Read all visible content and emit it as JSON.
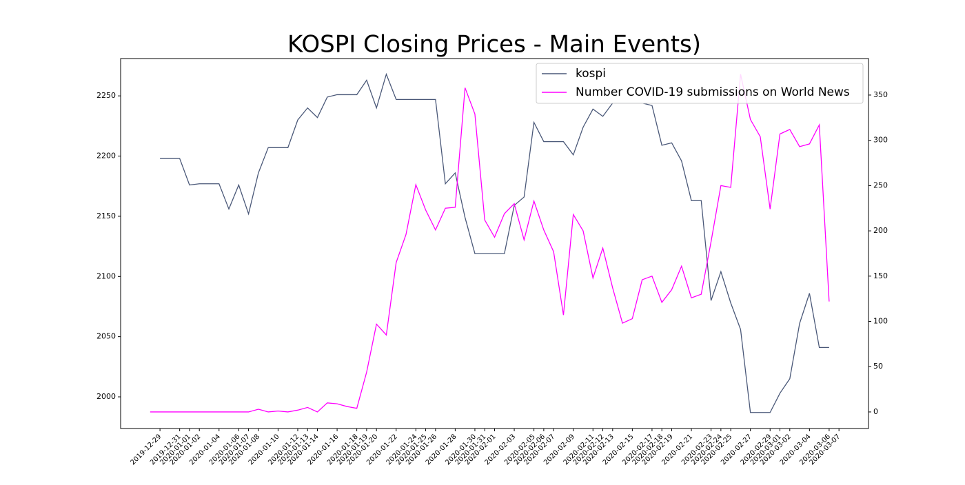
{
  "chart_data": {
    "type": "line",
    "title": "KOSPI Closing Prices - Main Events)",
    "x": [
      "2019-12-28",
      "2019-12-29",
      "2019-12-30",
      "2019-12-31",
      "2020-01-01",
      "2020-01-02",
      "2020-01-03",
      "2020-01-04",
      "2020-01-05",
      "2020-01-06",
      "2020-01-07",
      "2020-01-08",
      "2020-01-09",
      "2020-01-10",
      "2020-01-11",
      "2020-01-12",
      "2020-01-13",
      "2020-01-14",
      "2020-01-15",
      "2020-01-16",
      "2020-01-17",
      "2020-01-18",
      "2020-01-19",
      "2020-01-20",
      "2020-01-21",
      "2020-01-22",
      "2020-01-23",
      "2020-01-24",
      "2020-01-25",
      "2020-01-26",
      "2020-01-27",
      "2020-01-28",
      "2020-01-29",
      "2020-01-30",
      "2020-01-31",
      "2020-02-01",
      "2020-02-02",
      "2020-02-03",
      "2020-02-04",
      "2020-02-05",
      "2020-02-06",
      "2020-02-07",
      "2020-02-08",
      "2020-02-09",
      "2020-02-10",
      "2020-02-11",
      "2020-02-12",
      "2020-02-13",
      "2020-02-14",
      "2020-02-15",
      "2020-02-16",
      "2020-02-17",
      "2020-02-18",
      "2020-02-19",
      "2020-02-20",
      "2020-02-21",
      "2020-02-22",
      "2020-02-23",
      "2020-02-24",
      "2020-02-25",
      "2020-02-26",
      "2020-02-27",
      "2020-02-28",
      "2020-02-29",
      "2020-03-01",
      "2020-03-02",
      "2020-03-03",
      "2020-03-04",
      "2020-03-05",
      "2020-03-06"
    ],
    "series": [
      {
        "name": "kospi",
        "color": "#4a5878",
        "axis": "y",
        "values": [
          null,
          2198,
          2198,
          2198,
          2176,
          2177,
          2177,
          2177,
          2156,
          2176,
          2152,
          2186,
          2207,
          2207,
          2207,
          2230,
          2240,
          2232,
          2249,
          2251,
          2251,
          2251,
          2263,
          2240,
          2268,
          2247,
          2247,
          2247,
          2247,
          2247,
          2177,
          2186,
          2149,
          2119,
          2119,
          2119,
          2119,
          2159,
          2166,
          2228,
          2212,
          2212,
          2212,
          2201,
          2224,
          2239,
          2233,
          2244,
          2244,
          2244,
          2244,
          2242,
          2209,
          2211,
          2196,
          2163,
          2163,
          2080,
          2104,
          2078,
          2056,
          1987,
          1987,
          1987,
          2003,
          2015,
          2061,
          2086,
          2041,
          2041
        ]
      },
      {
        "name": "Number COVID-19 submissions on World News",
        "color": "#ff00ff",
        "axis": "y2",
        "values": [
          0,
          0,
          0,
          0,
          0,
          0,
          0,
          0,
          0,
          0,
          0,
          3,
          0,
          1,
          0,
          2,
          5,
          0,
          10,
          9,
          6,
          4,
          44,
          97,
          85,
          165,
          196,
          251,
          223,
          201,
          225,
          226,
          358,
          329,
          212,
          193,
          219,
          230,
          190,
          233,
          201,
          177,
          107,
          218,
          200,
          148,
          181,
          137,
          98,
          103,
          146,
          150,
          121,
          135,
          161,
          126,
          130,
          188,
          250,
          248,
          373,
          323,
          304,
          224,
          307,
          312,
          293,
          296,
          317,
          122
        ]
      }
    ],
    "xlim": [
      "2019-12-25",
      "2020-03-10"
    ],
    "xticks": [
      "2019-12-29",
      "2019-12-31",
      "2020-01-01",
      "2020-01-02",
      "2020-01-04",
      "2020-01-06",
      "2020-01-07",
      "2020-01-08",
      "2020-01-10",
      "2020-01-12",
      "2020-01-13",
      "2020-01-14",
      "2020-01-16",
      "2020-01-18",
      "2020-01-19",
      "2020-01-20",
      "2020-01-22",
      "2020-01-24",
      "2020-01-25",
      "2020-01-26",
      "2020-01-28",
      "2020-01-30",
      "2020-01-31",
      "2020-02-01",
      "2020-02-03",
      "2020-02-05",
      "2020-02-06",
      "2020-02-07",
      "2020-02-09",
      "2020-02-11",
      "2020-02-12",
      "2020-02-13",
      "2020-02-15",
      "2020-02-17",
      "2020-02-18",
      "2020-02-19",
      "2020-02-21",
      "2020-02-23",
      "2020-02-24",
      "2020-02-25",
      "2020-02-27",
      "2020-02-29",
      "2020-03-01",
      "2020-03-02",
      "2020-03-04",
      "2020-03-06",
      "2020-03-07"
    ],
    "ylim": [
      1973.7,
      2281
    ],
    "yticks": [
      2000,
      2050,
      2100,
      2150,
      2200,
      2250
    ],
    "y2lim": [
      -18.3,
      390.3
    ],
    "y2ticks": [
      0,
      50,
      100,
      150,
      200,
      250,
      300,
      350
    ],
    "legend": "upper right"
  }
}
